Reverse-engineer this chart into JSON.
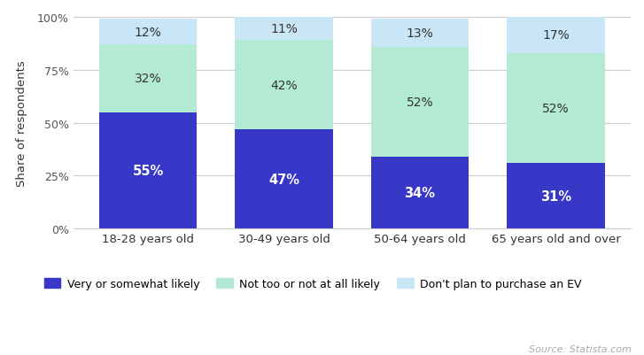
{
  "categories": [
    "18-28 years old",
    "30-49 years old",
    "50-64 years old",
    "65 years old and over"
  ],
  "series": {
    "Very or somewhat likely": [
      55,
      47,
      34,
      31
    ],
    "Not too or not at all likely": [
      32,
      42,
      52,
      52
    ],
    "Don't plan to purchase an EV": [
      12,
      11,
      13,
      17
    ]
  },
  "colors": {
    "Very or somewhat likely": "#3737c8",
    "Not too or not at all likely": "#b2ead4",
    "Don't plan to purchase an EV": "#c8e6f5"
  },
  "ylabel": "Share of respondents",
  "yticks": [
    0,
    25,
    50,
    75,
    100
  ],
  "ytick_labels": [
    "0%",
    "25%",
    "50%",
    "75%",
    "100%"
  ],
  "source_text": "Source: Statista.com",
  "bar_width": 0.72,
  "background_color": "#ffffff",
  "grid_color": "#cccccc",
  "text_color_on_dark": "#ffffff",
  "text_color_on_light": "#333333"
}
